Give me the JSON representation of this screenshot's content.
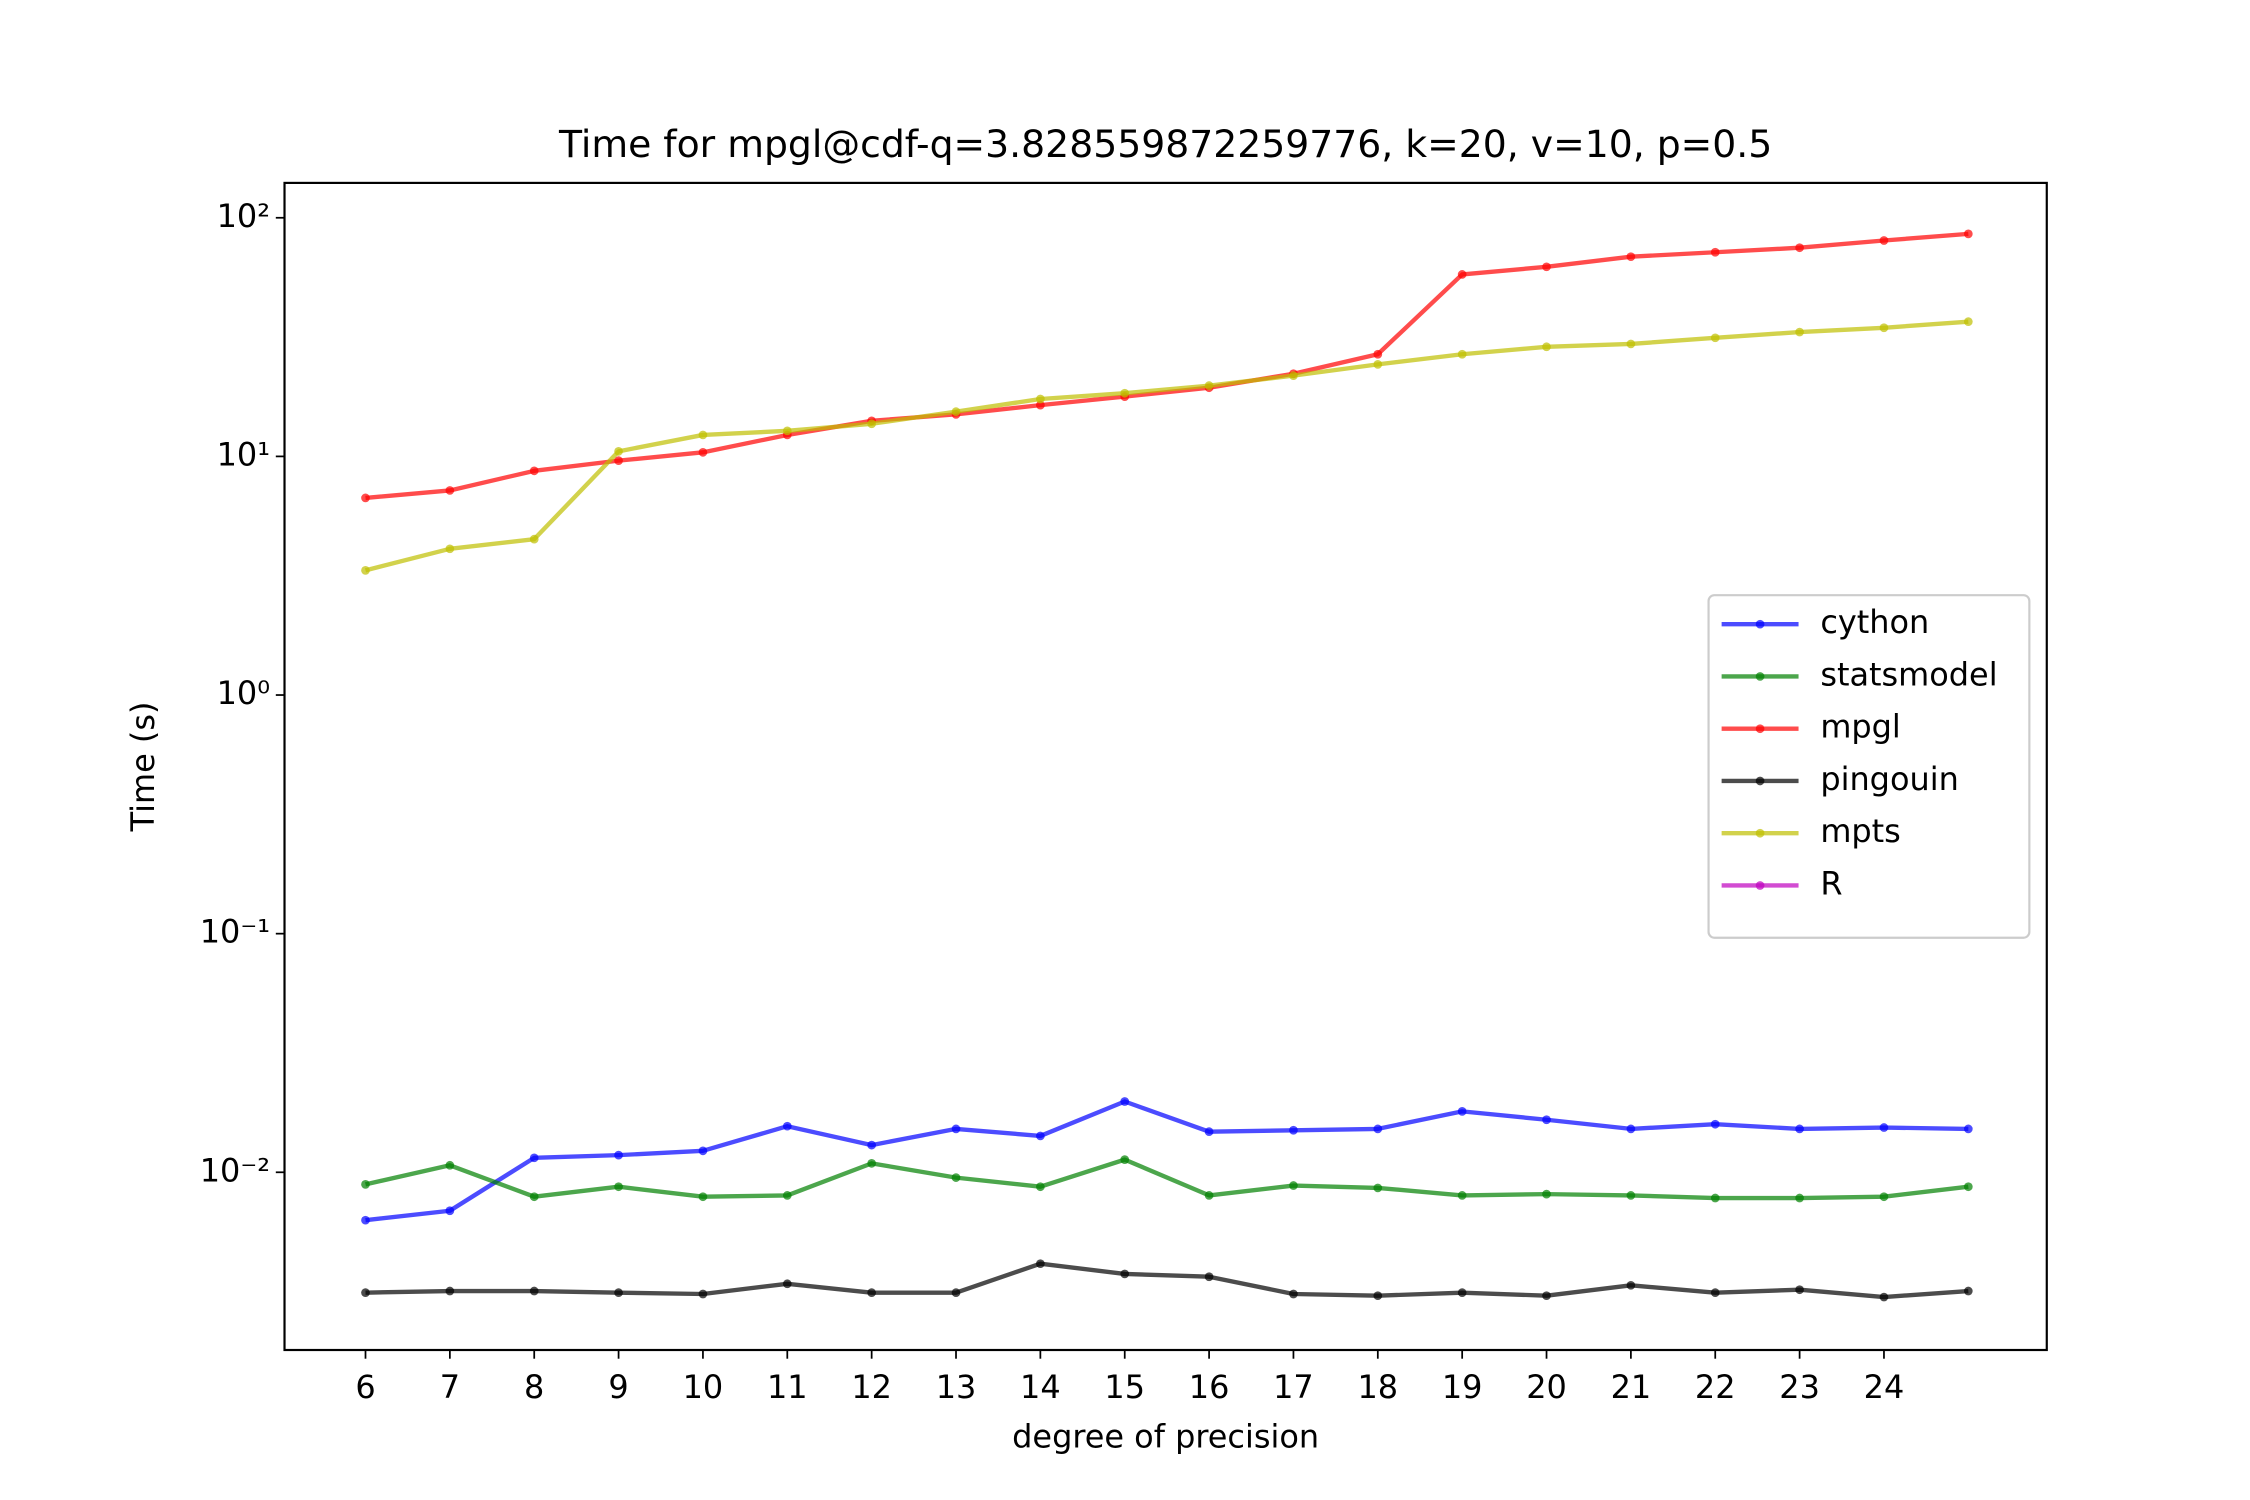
{
  "chart_data": {
    "type": "line",
    "title": "Time for mpgl@cdf-q=3.828559872259776, k=20, v=10, p=0.5",
    "xlabel": "degree of precision",
    "ylabel": "Time (s)",
    "x": [
      6,
      7,
      8,
      9,
      10,
      11,
      12,
      13,
      14,
      15,
      16,
      17,
      18,
      19,
      20,
      21,
      22,
      23,
      24,
      25
    ],
    "xlim": [
      5.04,
      25.93
    ],
    "xticks": [
      6,
      7,
      8,
      9,
      10,
      11,
      12,
      13,
      14,
      15,
      16,
      17,
      18,
      19,
      20,
      21,
      22,
      23,
      24
    ],
    "ylog": true,
    "ylim": [
      0.0018,
      140
    ],
    "yticks": [
      {
        "value": 0.01,
        "label": "10⁻²"
      },
      {
        "value": 0.1,
        "label": "10⁻¹"
      },
      {
        "value": 1,
        "label": "10⁰"
      },
      {
        "value": 10,
        "label": "10¹"
      },
      {
        "value": 100,
        "label": "10²"
      }
    ],
    "alpha": 0.7,
    "legend": "center right",
    "series": [
      {
        "name": "cython",
        "color": "#0000ff",
        "values": [
          0.0063,
          0.0069,
          0.0115,
          0.0118,
          0.0123,
          0.0156,
          0.013,
          0.0152,
          0.0142,
          0.0198,
          0.0148,
          0.015,
          0.0152,
          0.018,
          0.0166,
          0.0152,
          0.0159,
          0.0152,
          0.0154,
          0.0152
        ]
      },
      {
        "name": "statsmodel",
        "color": "#008000",
        "values": [
          0.0089,
          0.0107,
          0.0079,
          0.0087,
          0.0079,
          0.008,
          0.0109,
          0.0095,
          0.0087,
          0.0113,
          0.008,
          0.0088,
          0.0086,
          0.008,
          0.0081,
          0.008,
          0.0078,
          0.0078,
          0.0079,
          0.0087
        ]
      },
      {
        "name": "mpgl",
        "color": "#ff0000",
        "values": [
          6.7,
          7.2,
          8.7,
          9.6,
          10.4,
          12.3,
          14.1,
          15.0,
          16.4,
          17.8,
          19.4,
          22.2,
          26.8,
          57.9,
          62.3,
          68.7,
          71.7,
          74.9,
          80.3,
          85.6
        ]
      },
      {
        "name": "pingouin",
        "color": "#000000",
        "values": [
          0.00313,
          0.00318,
          0.00318,
          0.00313,
          0.00309,
          0.00341,
          0.00313,
          0.00313,
          0.00414,
          0.00375,
          0.00365,
          0.00309,
          0.00304,
          0.00313,
          0.00304,
          0.00336,
          0.00313,
          0.00322,
          0.003,
          0.00318
        ]
      },
      {
        "name": "mpts",
        "color": "#bfbf00",
        "values": [
          3.33,
          4.1,
          4.5,
          10.5,
          12.3,
          12.8,
          13.7,
          15.4,
          17.4,
          18.4,
          19.8,
          21.8,
          24.3,
          26.8,
          28.8,
          29.6,
          31.4,
          33.2,
          34.6,
          36.7
        ]
      },
      {
        "name": "R",
        "color": "#bf00bf",
        "values": [
          null,
          null,
          null,
          null,
          null,
          null,
          null,
          null,
          null,
          null,
          null,
          null,
          null,
          null,
          null,
          null,
          null,
          null,
          null,
          null
        ]
      }
    ]
  }
}
